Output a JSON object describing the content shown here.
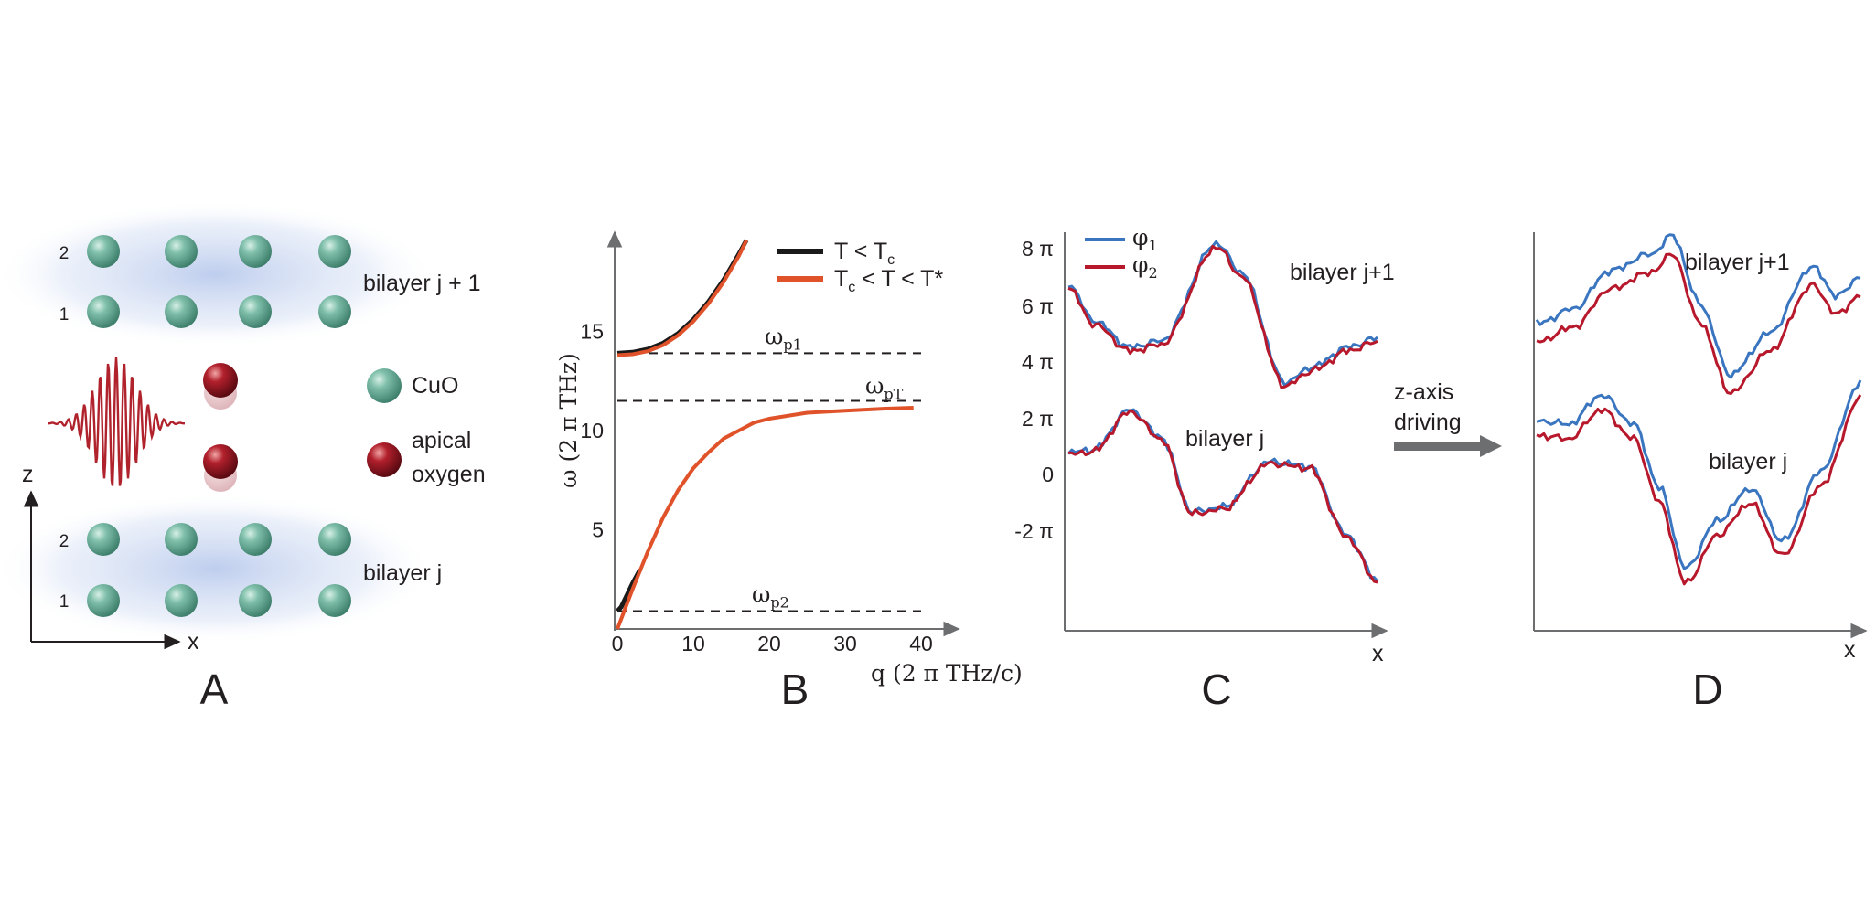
{
  "colors": {
    "cuo_atom": "#5fa58e",
    "apical_oxygen": "#8b1420",
    "bilayer_glow": "#b9c9ea",
    "pulse": "#b0232d",
    "phi1": "#3a75c0",
    "phi2": "#b7182b",
    "curve_below_tc": "#1a1a1a",
    "curve_pseudogap": "#e0532a",
    "arrow": "#6d6e70"
  },
  "panels": {
    "A": {
      "letter": "A",
      "top_bilayer_label": "bilayer j + 1",
      "bottom_bilayer_label": "bilayer j",
      "layer_numbers": {
        "top_upper": "2",
        "top_lower": "1",
        "bottom_upper": "2",
        "bottom_lower": "1"
      },
      "legend_cuo": "CuO",
      "legend_oxygen_line1": "apical",
      "legend_oxygen_line2": "oxygen",
      "axis_z": "z",
      "axis_x": "x",
      "icons": [
        "terahertz-pulse-icon",
        "cuo-atom-icon",
        "apical-oxygen-icon"
      ]
    },
    "B": {
      "letter": "B",
      "ylabel": "ω (2 π THz)",
      "xlabel": "q (2 π THz/c)",
      "xticks": [
        "0",
        "10",
        "20",
        "30",
        "40"
      ],
      "yticks": [
        "5",
        "10",
        "15"
      ],
      "legend": [
        {
          "label": "T < T",
          "sub": "c"
        },
        {
          "label": "T",
          "sub": "c",
          "tail": " < T < T*"
        }
      ],
      "ref_lines": [
        {
          "label": "ω",
          "sub": "p1"
        },
        {
          "label": "ω",
          "sub": "pT"
        },
        {
          "label": "ω",
          "sub": "p2"
        }
      ]
    },
    "C": {
      "letter": "C",
      "yticks": [
        "8 π",
        "6 π",
        "4 π",
        "2 π",
        "0",
        "-2 π"
      ],
      "xlabel": "x",
      "legend": [
        {
          "label": "φ",
          "sub": "1"
        },
        {
          "label": "φ",
          "sub": "2"
        }
      ],
      "top_label": "bilayer j+1",
      "bottom_label": "bilayer j"
    },
    "arrow": {
      "line1": "z-axis",
      "line2": "driving"
    },
    "D": {
      "letter": "D",
      "xlabel": "x",
      "top_label": "bilayer j+1",
      "bottom_label": "bilayer j"
    }
  },
  "chart_data": {
    "type": "line",
    "xlabel": "q (2 π THz/c)",
    "ylabel": "ω (2 π THz)",
    "xlim": [
      0,
      40
    ],
    "ylim": [
      0,
      20
    ],
    "reference_lines": [
      {
        "name": "ω_p1",
        "y": 13.9
      },
      {
        "name": "ω_pT",
        "y": 11.5
      },
      {
        "name": "ω_p2",
        "y": 0.9
      }
    ],
    "series": [
      {
        "name": "T < T_c",
        "x": [
          0,
          2,
          4,
          6,
          8,
          10,
          12,
          14,
          16,
          17
        ],
        "y": [
          13.9,
          13.95,
          14.1,
          14.4,
          14.9,
          15.6,
          16.5,
          17.6,
          18.9,
          19.6
        ],
        "lower_branch_x": [
          0,
          0.5,
          1,
          2,
          3
        ],
        "lower_branch_y": [
          0.9,
          1.1,
          1.5,
          2.3,
          3.0
        ]
      },
      {
        "name": "T_c < T < T*",
        "upper_x": [
          0,
          2,
          4,
          6,
          8,
          10,
          12,
          14,
          16,
          17
        ],
        "upper_y": [
          13.8,
          13.85,
          14.0,
          14.3,
          14.8,
          15.5,
          16.4,
          17.5,
          18.8,
          19.6
        ],
        "lower_x": [
          0,
          2,
          4,
          6,
          8,
          10,
          12,
          14,
          16,
          18,
          20,
          25,
          30,
          35,
          39
        ],
        "lower_y": [
          0,
          2.0,
          3.9,
          5.6,
          7.0,
          8.1,
          8.9,
          9.6,
          10.0,
          10.4,
          10.6,
          10.9,
          11.0,
          11.1,
          11.15
        ]
      }
    ],
    "legend_position": "top-right",
    "grid": false
  }
}
